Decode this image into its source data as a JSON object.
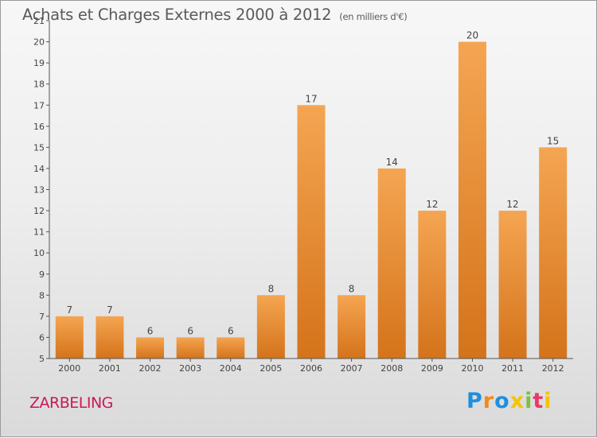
{
  "title": "Achats et Charges Externes 2000 à 2012",
  "subtitle": "(en milliers d'€)",
  "location": "ZARBELING",
  "logo": {
    "text": "Proxiti",
    "letters": [
      "P",
      "r",
      "o",
      "x",
      "i",
      "t",
      "i"
    ]
  },
  "colors": {
    "bar_top": "#f5a552",
    "bar_bottom": "#d4731a",
    "label": "#c8195a"
  },
  "chart_data": {
    "type": "bar",
    "title": "Achats et Charges Externes 2000 à 2012",
    "categories": [
      "2000",
      "2001",
      "2002",
      "2003",
      "2004",
      "2005",
      "2006",
      "2007",
      "2008",
      "2009",
      "2010",
      "2011",
      "2012"
    ],
    "values": [
      7,
      7,
      6,
      6,
      6,
      8,
      17,
      8,
      14,
      12,
      20,
      12,
      15
    ],
    "ylim": [
      5,
      21
    ],
    "yticks": [
      5,
      6,
      7,
      8,
      9,
      10,
      11,
      12,
      13,
      14,
      15,
      16,
      17,
      18,
      19,
      20,
      21
    ],
    "grid": false,
    "xlabel": "",
    "ylabel": ""
  }
}
